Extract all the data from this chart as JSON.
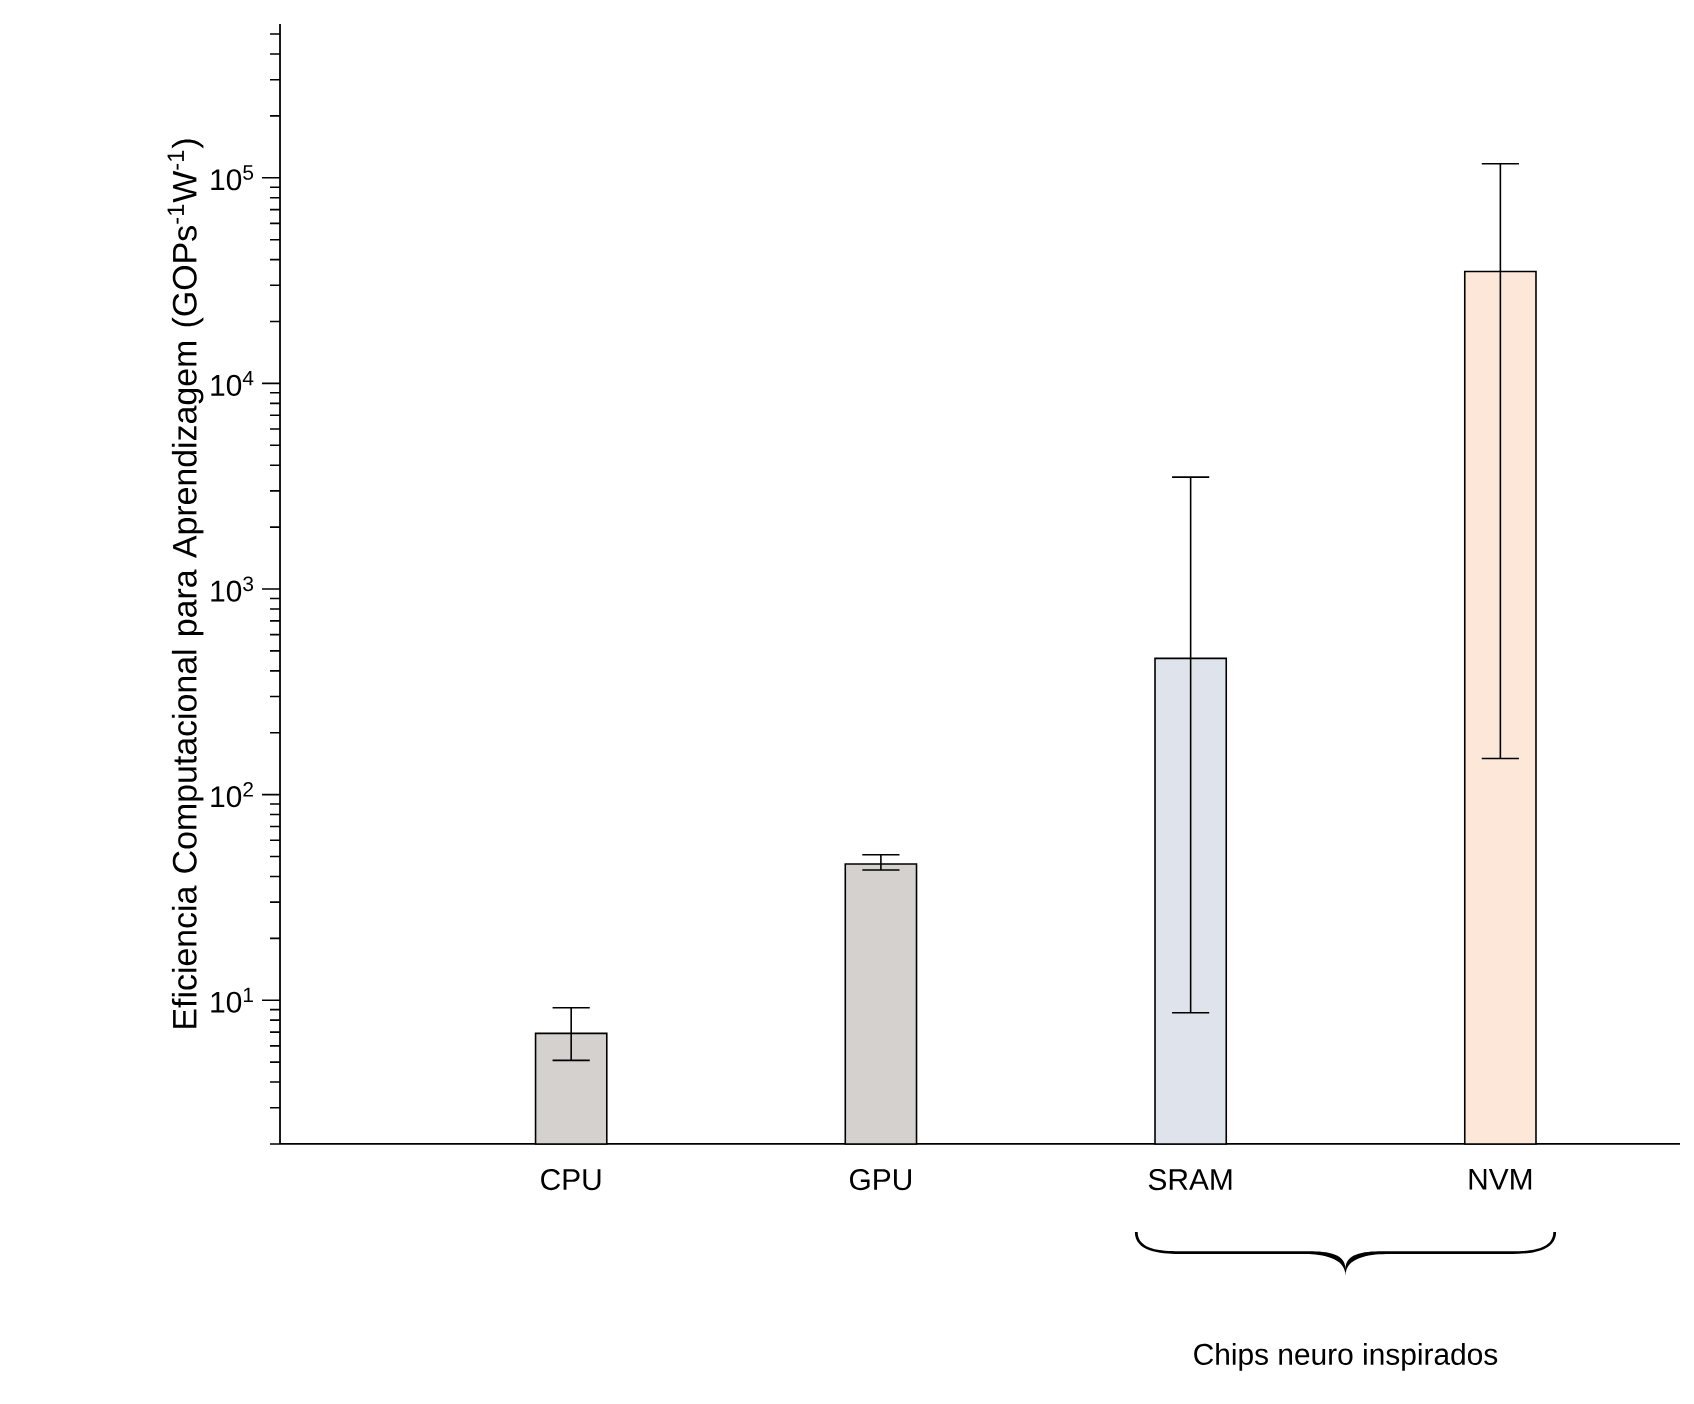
{
  "chart_data": {
    "type": "bar",
    "ylabel": "Eficiencia Computacional para Aprendizagem (GOPs$^{-1}$W$^{-1}$)",
    "categories": [
      "CPU",
      "GPU",
      "SRAM",
      "NVM"
    ],
    "values": [
      6.9,
      46,
      460,
      35000
    ],
    "colors": [
      "#d4d1ce",
      "#d4d1ce",
      "#dfe4ec",
      "#fde7d8"
    ],
    "errors": [
      [
        5.1,
        9.2
      ],
      [
        43,
        51
      ],
      [
        8.7,
        3500
      ],
      [
        150,
        117000
      ]
    ],
    "log": true,
    "ylim": [
      2,
      560000
    ],
    "yticks": [
      {
        "value": 10,
        "label": "10$^{1}$"
      },
      {
        "value": 100,
        "label": "10$^{2}$"
      },
      {
        "value": 1000,
        "label": "10$^{3}$"
      },
      {
        "value": 10000,
        "label": "10$^{4}$"
      },
      {
        "value": 100000,
        "label": "10$^{5}$"
      }
    ],
    "annotations": [
      "Chips neuro inspirados"
    ]
  }
}
